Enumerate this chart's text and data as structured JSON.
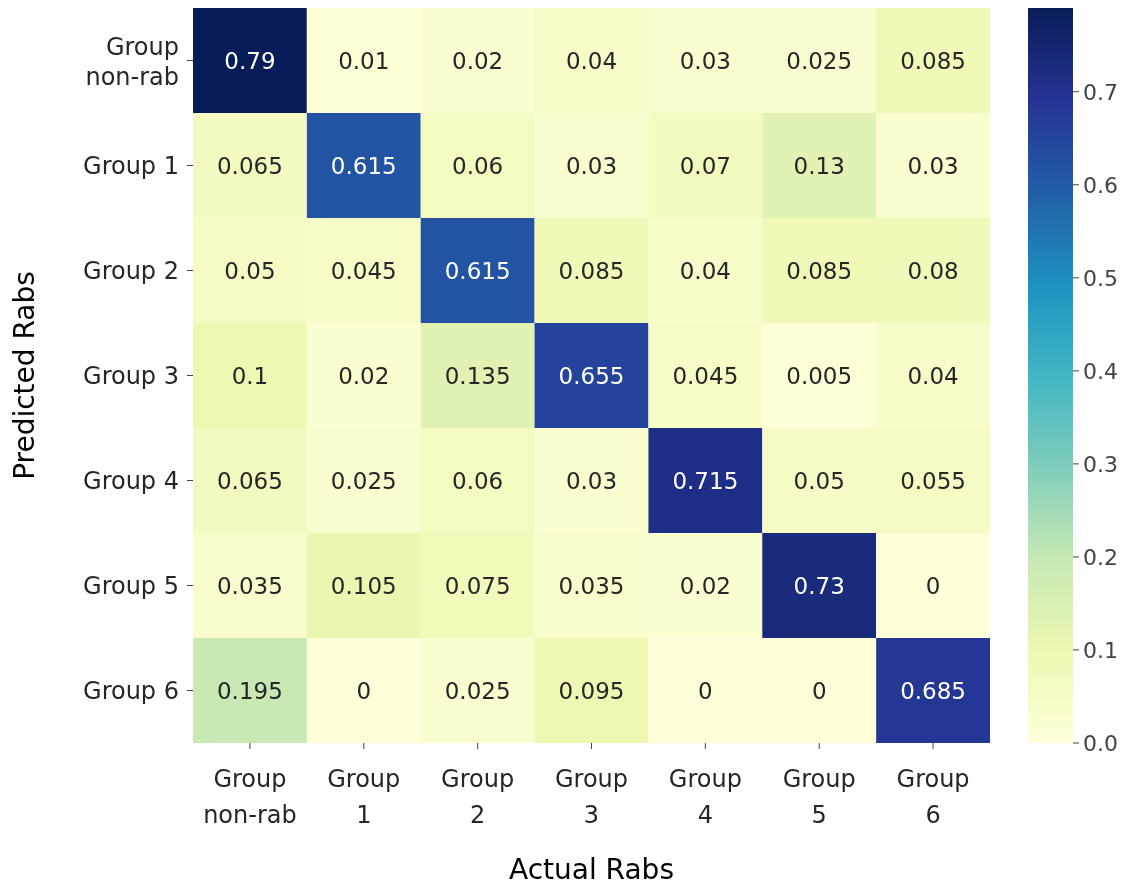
{
  "chart_data": {
    "type": "heatmap",
    "xlabel": "Actual Rabs",
    "ylabel": "Predicted Rabs",
    "categories": [
      "Group non-rab",
      "Group 1",
      "Group 2",
      "Group 3",
      "Group 4",
      "Group 5",
      "Group 6"
    ],
    "y_categories": [
      "Group non-rab",
      "Group 1",
      "Group 2",
      "Group 3",
      "Group 4",
      "Group 5",
      "Group 6"
    ],
    "cells": [
      [
        0.79,
        0.01,
        0.02,
        0.04,
        0.03,
        0.025,
        0.085
      ],
      [
        0.065,
        0.615,
        0.06,
        0.03,
        0.07,
        0.13,
        0.03
      ],
      [
        0.05,
        0.045,
        0.615,
        0.085,
        0.04,
        0.085,
        0.08
      ],
      [
        0.1,
        0.02,
        0.135,
        0.655,
        0.045,
        0.005,
        0.04
      ],
      [
        0.065,
        0.025,
        0.06,
        0.03,
        0.715,
        0.05,
        0.055
      ],
      [
        0.035,
        0.105,
        0.075,
        0.035,
        0.02,
        0.73,
        0
      ],
      [
        0.195,
        0,
        0.025,
        0.095,
        0,
        0,
        0.685
      ]
    ],
    "data_labels": true,
    "clim": [
      0,
      0.79
    ],
    "cticks": [
      {
        "value": 0,
        "label": "0.0"
      },
      0.1,
      0.2,
      0.3,
      0.4,
      0.5,
      0.6,
      0.7
    ]
  }
}
